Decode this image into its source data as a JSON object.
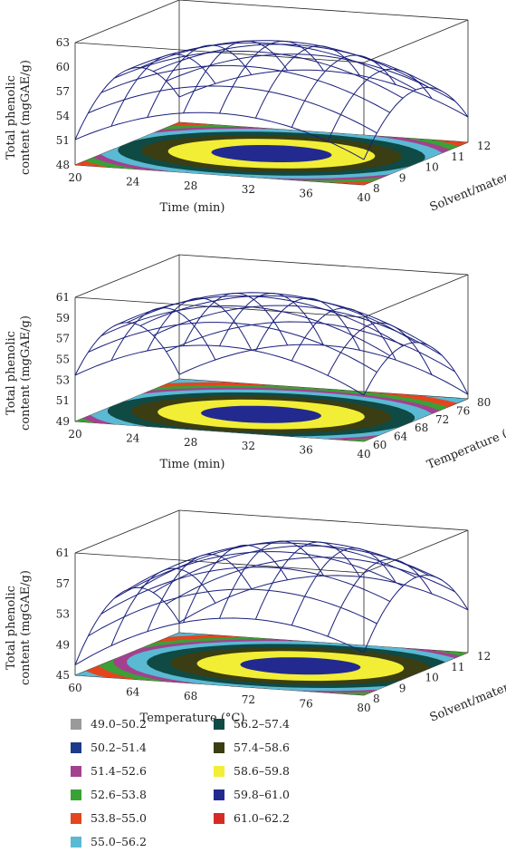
{
  "chart_data": [
    {
      "type": "surface3d",
      "x": {
        "label": "Time (min)",
        "ticks": [
          20,
          24,
          28,
          32,
          36,
          40
        ],
        "range": [
          20,
          40
        ]
      },
      "y": {
        "label": "Solvent/material",
        "ticks": [
          8,
          9,
          10,
          11,
          12
        ],
        "range": [
          8,
          12
        ]
      },
      "z": {
        "label": "Total phenolic content (mgGAE/g)",
        "ticks": [
          48,
          51,
          54,
          57,
          60,
          63
        ],
        "range": [
          48,
          63
        ]
      },
      "surface_peak": 61.5,
      "surface_peak_at": {
        "x": 30,
        "y": 10
      }
    },
    {
      "type": "surface3d",
      "x": {
        "label": "Time (min)",
        "ticks": [
          20,
          24,
          28,
          32,
          36,
          40
        ],
        "range": [
          20,
          40
        ]
      },
      "y": {
        "label": "Temperature (°C)",
        "ticks": [
          60,
          64,
          68,
          72,
          76,
          80
        ],
        "range": [
          60,
          80
        ]
      },
      "z": {
        "label": "Total phenolic content (mgGAE/g)",
        "ticks": [
          49,
          51,
          53,
          55,
          57,
          59,
          61
        ],
        "range": [
          49,
          61
        ]
      },
      "surface_peak": 60.5,
      "surface_peak_at": {
        "x": 30,
        "y": 68
      }
    },
    {
      "type": "surface3d",
      "x": {
        "label": "Temperature (°C)",
        "ticks": [
          60,
          64,
          68,
          72,
          76,
          80
        ],
        "range": [
          60,
          80
        ]
      },
      "y": {
        "label": "Solvent/material",
        "ticks": [
          8,
          9,
          10,
          11,
          12
        ],
        "range": [
          8,
          12
        ]
      },
      "z": {
        "label": "Total phenolic content (mgGAE/g)",
        "ticks": [
          45,
          49,
          53,
          57,
          61
        ],
        "range": [
          45,
          61
        ]
      },
      "surface_peak": 61.0,
      "surface_peak_at": {
        "x": 72,
        "y": 10
      }
    }
  ],
  "legend": [
    {
      "label": "49.0–50.2",
      "color": "#9a9a9a"
    },
    {
      "label": "50.2–51.4",
      "color": "#1e3a8a"
    },
    {
      "label": "51.4–52.6",
      "color": "#a3418f"
    },
    {
      "label": "52.6–53.8",
      "color": "#3aa136"
    },
    {
      "label": "53.8–55.0",
      "color": "#e4451f"
    },
    {
      "label": "55.0–56.2",
      "color": "#5ab9d3"
    },
    {
      "label": "56.2–57.4",
      "color": "#0f4a45"
    },
    {
      "label": "57.4–58.6",
      "color": "#3b3d12"
    },
    {
      "label": "58.6–59.8",
      "color": "#f2ee35"
    },
    {
      "label": "59.8–61.0",
      "color": "#232a8f"
    },
    {
      "label": "61.0–62.2",
      "color": "#d62b25"
    }
  ],
  "mesh_color": "#1a1f7a"
}
